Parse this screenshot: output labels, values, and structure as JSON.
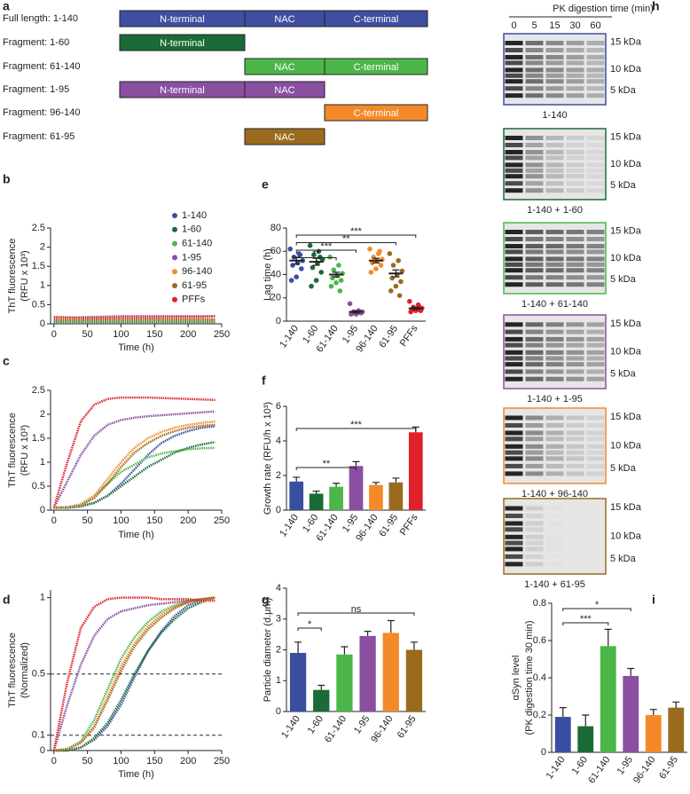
{
  "panel_labels": [
    "a",
    "b",
    "c",
    "d",
    "e",
    "f",
    "g",
    "h",
    "i"
  ],
  "domain_diagram": {
    "rows": [
      {
        "label": "Full length: 1-140",
        "color": "#3f4ea0",
        "segments": [
          "N-terminal",
          "NAC",
          "C-terminal"
        ]
      },
      {
        "label": "Fragment: 1-60",
        "color": "#1a6b35",
        "segments": [
          "N-terminal"
        ]
      },
      {
        "label": "Fragment: 61-140",
        "color": "#4cb648",
        "segments": [
          "NAC",
          "C-terminal"
        ]
      },
      {
        "label": "Fragment: 1-95",
        "color": "#8a4fa0",
        "segments": [
          "N-terminal",
          "NAC"
        ]
      },
      {
        "label": "Fragment: 96-140",
        "color": "#f4892a",
        "segments": [
          "C-terminal"
        ]
      },
      {
        "label": "Fragment: 61-95",
        "color": "#9a6b1f",
        "segments": [
          "NAC"
        ]
      }
    ]
  },
  "gel": {
    "title": "PK digestion time (min)",
    "lanes": [
      0,
      5,
      15,
      30,
      60
    ],
    "markers": [
      "15 kDa",
      "10 kDa",
      "5 kDa"
    ],
    "blots": [
      {
        "caption": "1-140",
        "color": "#3f4ea0"
      },
      {
        "caption": "1-140 + 1-60",
        "color": "#1a6b35"
      },
      {
        "caption": "1-140 + 61-140",
        "color": "#4cb648"
      },
      {
        "caption": "1-140 + 1-95",
        "color": "#8a4fa0"
      },
      {
        "caption": "1-140 + 96-140",
        "color": "#f4892a"
      },
      {
        "caption": "1-140 + 61-95",
        "color": "#9a6b1f"
      }
    ]
  },
  "chart_data": [
    {
      "type": "line",
      "ylabel": [
        "ThT fluorescence",
        "(RFU x 10³)"
      ],
      "xlabel": "Time (h)",
      "xlim": [
        -5,
        250
      ],
      "ylim": [
        0,
        2.5
      ],
      "xticks": [
        0,
        50,
        100,
        150,
        200,
        250
      ],
      "yticks": [
        0,
        0.5,
        1,
        1.5,
        2,
        2.5
      ],
      "legend": "upper right",
      "x": [
        0,
        20,
        40,
        60,
        80,
        100,
        120,
        140,
        160,
        180,
        200,
        220,
        240
      ],
      "series": [
        {
          "name": "1-140",
          "color": "#3a4ea0",
          "values": [
            0.1,
            0.1,
            0.1,
            0.11,
            0.12,
            0.12,
            0.12,
            0.12,
            0.12,
            0.12,
            0.12,
            0.12,
            0.12
          ]
        },
        {
          "name": "1-60",
          "color": "#1a6b35",
          "values": [
            0.05,
            0.05,
            0.05,
            0.05,
            0.05,
            0.05,
            0.05,
            0.05,
            0.05,
            0.05,
            0.05,
            0.05,
            0.05
          ]
        },
        {
          "name": "61-140",
          "color": "#4cb648",
          "values": [
            0.08,
            0.08,
            0.08,
            0.08,
            0.08,
            0.08,
            0.08,
            0.08,
            0.08,
            0.08,
            0.08,
            0.08,
            0.08
          ]
        },
        {
          "name": "1-95",
          "color": "#8a4fa0",
          "values": [
            0.15,
            0.16,
            0.17,
            0.18,
            0.19,
            0.2,
            0.2,
            0.2,
            0.2,
            0.2,
            0.2,
            0.2,
            0.2
          ]
        },
        {
          "name": "96-140",
          "color": "#f4892a",
          "values": [
            0.12,
            0.12,
            0.12,
            0.12,
            0.12,
            0.12,
            0.12,
            0.12,
            0.12,
            0.12,
            0.12,
            0.12,
            0.12
          ]
        },
        {
          "name": "61-95",
          "color": "#9a6b1f",
          "values": [
            0.1,
            0.1,
            0.1,
            0.1,
            0.1,
            0.1,
            0.1,
            0.1,
            0.1,
            0.1,
            0.1,
            0.1,
            0.1
          ]
        },
        {
          "name": "PFFs",
          "color": "#e0202a",
          "values": [
            0.18,
            0.17,
            0.16,
            0.16,
            0.16,
            0.17,
            0.17,
            0.17,
            0.17,
            0.18,
            0.18,
            0.18,
            0.2
          ]
        }
      ]
    },
    {
      "type": "line",
      "ylabel": [
        "ThT fluorescence",
        "(RFU x 10³)"
      ],
      "xlabel": "Time (h)",
      "xlim": [
        -5,
        250
      ],
      "ylim": [
        0,
        2.5
      ],
      "xticks": [
        0,
        50,
        100,
        150,
        200,
        250
      ],
      "yticks": [
        0,
        0.5,
        1,
        1.5,
        2,
        2.5
      ],
      "x": [
        0,
        20,
        40,
        60,
        80,
        100,
        120,
        140,
        160,
        180,
        200,
        220,
        240
      ],
      "series": [
        {
          "name": "1-140",
          "color": "#3a4ea0",
          "values": [
            0.05,
            0.05,
            0.08,
            0.15,
            0.3,
            0.55,
            0.85,
            1.15,
            1.4,
            1.55,
            1.65,
            1.72,
            1.75
          ]
        },
        {
          "name": "1-60",
          "color": "#1a6b35",
          "values": [
            0.05,
            0.05,
            0.08,
            0.15,
            0.3,
            0.5,
            0.7,
            0.9,
            1.05,
            1.2,
            1.3,
            1.37,
            1.42
          ]
        },
        {
          "name": "61-140",
          "color": "#4cb648",
          "values": [
            0.05,
            0.06,
            0.12,
            0.3,
            0.55,
            0.8,
            0.95,
            1.1,
            1.18,
            1.23,
            1.27,
            1.29,
            1.3
          ]
        },
        {
          "name": "1-95",
          "color": "#8a4fa0",
          "values": [
            0.05,
            0.6,
            1.15,
            1.55,
            1.78,
            1.88,
            1.93,
            1.96,
            1.98,
            2.0,
            2.02,
            2.04,
            2.06
          ]
        },
        {
          "name": "96-140",
          "color": "#f4892a",
          "values": [
            0.05,
            0.06,
            0.12,
            0.3,
            0.65,
            1.0,
            1.3,
            1.5,
            1.63,
            1.72,
            1.78,
            1.82,
            1.85
          ]
        },
        {
          "name": "61-95",
          "color": "#9a6b1f",
          "values": [
            0.05,
            0.06,
            0.1,
            0.25,
            0.55,
            0.9,
            1.2,
            1.4,
            1.55,
            1.65,
            1.72,
            1.76,
            1.78
          ]
        },
        {
          "name": "PFFs",
          "color": "#e0202a",
          "values": [
            0.05,
            1.0,
            1.85,
            2.2,
            2.32,
            2.35,
            2.35,
            2.35,
            2.34,
            2.33,
            2.32,
            2.31,
            2.3
          ]
        }
      ]
    },
    {
      "type": "line",
      "ylabel": [
        "ThT fluorescence",
        "(Normalized)"
      ],
      "xlabel": "Time (h)",
      "xlim": [
        -5,
        250
      ],
      "ylim": [
        0,
        1.05
      ],
      "xticks": [
        0,
        50,
        100,
        150,
        200,
        250
      ],
      "yticks": [
        0,
        0.1,
        0.5,
        1
      ],
      "reference_lines": [
        0.5,
        0.1
      ],
      "x": [
        0,
        20,
        40,
        60,
        80,
        100,
        120,
        140,
        160,
        180,
        200,
        220,
        240
      ],
      "series": [
        {
          "name": "1-140",
          "color": "#3a4ea0",
          "values": [
            0,
            0,
            0.02,
            0.07,
            0.16,
            0.3,
            0.48,
            0.65,
            0.78,
            0.88,
            0.95,
            0.98,
            1
          ]
        },
        {
          "name": "1-60",
          "color": "#1a6b35",
          "values": [
            0,
            0,
            0.02,
            0.08,
            0.18,
            0.33,
            0.5,
            0.65,
            0.77,
            0.86,
            0.93,
            0.97,
            1
          ]
        },
        {
          "name": "61-140",
          "color": "#4cb648",
          "values": [
            0,
            0.01,
            0.06,
            0.2,
            0.4,
            0.6,
            0.74,
            0.84,
            0.91,
            0.95,
            0.98,
            0.99,
            1
          ]
        },
        {
          "name": "1-95",
          "color": "#8a4fa0",
          "values": [
            0,
            0.3,
            0.56,
            0.75,
            0.86,
            0.91,
            0.93,
            0.95,
            0.96,
            0.97,
            0.98,
            0.99,
            1
          ]
        },
        {
          "name": "96-140",
          "color": "#f4892a",
          "values": [
            0,
            0.01,
            0.05,
            0.16,
            0.35,
            0.55,
            0.7,
            0.81,
            0.89,
            0.94,
            0.97,
            0.99,
            1
          ]
        },
        {
          "name": "61-95",
          "color": "#9a6b1f",
          "values": [
            0,
            0.01,
            0.05,
            0.15,
            0.33,
            0.52,
            0.68,
            0.79,
            0.87,
            0.93,
            0.97,
            0.99,
            1
          ]
        },
        {
          "name": "PFFs",
          "color": "#e0202a",
          "values": [
            0,
            0.45,
            0.8,
            0.94,
            0.99,
            1,
            1,
            1,
            0.99,
            0.99,
            0.99,
            0.98,
            0.98
          ]
        }
      ]
    },
    {
      "type": "strip",
      "ylabel": [
        "Lag time (h)"
      ],
      "ylim": [
        0,
        80
      ],
      "yticks": [
        0,
        20,
        40,
        60,
        80
      ],
      "categories": [
        "1-140",
        "1-60",
        "61-140",
        "1-95",
        "96-140",
        "61-95",
        "PFFs"
      ],
      "colors": [
        "#3a4ea0",
        "#1a6b35",
        "#4cb648",
        "#8a4fa0",
        "#f4892a",
        "#9a6b1f",
        "#e0202a"
      ],
      "points": [
        [
          62,
          58,
          55,
          52,
          50,
          48,
          45,
          38,
          35,
          57
        ],
        [
          65,
          60,
          57,
          53,
          50,
          46,
          42,
          35,
          30,
          55
        ],
        [
          55,
          48,
          44,
          41,
          39,
          37,
          35,
          33,
          30,
          26
        ],
        [
          15,
          9,
          8,
          8,
          7,
          7,
          7,
          6,
          6,
          8
        ],
        [
          62,
          58,
          55,
          53,
          52,
          50,
          48,
          45,
          42,
          60
        ],
        [
          58,
          52,
          48,
          43,
          40,
          37,
          34,
          30,
          26,
          22
        ],
        [
          17,
          14,
          12,
          11,
          10,
          10,
          9,
          9,
          8,
          12
        ]
      ],
      "values": [
        52,
        51,
        40,
        8,
        52,
        41,
        11
      ],
      "errors": [
        3,
        3,
        2,
        1,
        2,
        3,
        1
      ],
      "annotations": [
        {
          "label": "**",
          "from": "1-140",
          "to": "61-140"
        },
        {
          "label": "***",
          "from": "1-140",
          "to": "1-95"
        },
        {
          "label": "**",
          "from": "1-140",
          "to": "61-95"
        },
        {
          "label": "***",
          "from": "1-140",
          "to": "PFFs"
        }
      ]
    },
    {
      "type": "bar",
      "ylabel": [
        "Growth rate (RFU/h x 10³)"
      ],
      "ylim": [
        0,
        6
      ],
      "yticks": [
        0,
        2,
        4,
        6
      ],
      "categories": [
        "1-140",
        "1-60",
        "61-140",
        "1-95",
        "96-140",
        "61-95",
        "PFFs"
      ],
      "colors": [
        "#3a4ea0",
        "#1a6b35",
        "#4cb648",
        "#8a4fa0",
        "#f4892a",
        "#9a6b1f",
        "#e0202a"
      ],
      "values": [
        1.65,
        0.95,
        1.35,
        2.55,
        1.45,
        1.6,
        4.5
      ],
      "errors": [
        0.25,
        0.15,
        0.2,
        0.25,
        0.15,
        0.25,
        0.3
      ],
      "annotations": [
        {
          "label": "**",
          "from": "1-140",
          "to": "1-95"
        },
        {
          "label": "***",
          "from": "1-140",
          "to": "PFFs"
        }
      ]
    },
    {
      "type": "bar",
      "ylabel": [
        "Particle diameter (d.μm)"
      ],
      "ylim": [
        0,
        4
      ],
      "yticks": [
        0,
        1,
        2,
        3,
        4
      ],
      "categories": [
        "1-140",
        "1-60",
        "61-140",
        "1-95",
        "96-140",
        "61-95"
      ],
      "colors": [
        "#3a4ea0",
        "#1a6b35",
        "#4cb648",
        "#8a4fa0",
        "#f4892a",
        "#9a6b1f"
      ],
      "values": [
        1.9,
        0.7,
        1.85,
        2.45,
        2.55,
        2.0
      ],
      "errors": [
        0.35,
        0.15,
        0.25,
        0.15,
        0.4,
        0.25
      ],
      "annotations": [
        {
          "label": "*",
          "from": "1-140",
          "to": "1-60"
        },
        {
          "label": "ns",
          "from": "1-140",
          "to": "61-95"
        }
      ]
    },
    {
      "type": "bar",
      "ylabel": [
        "αSyn level",
        "(PK digestion time 30 min)"
      ],
      "ylim": [
        0,
        0.8
      ],
      "yticks": [
        0,
        0.2,
        0.4,
        0.6,
        0.8
      ],
      "categories": [
        "1-140",
        "1-60",
        "61-140",
        "1-95",
        "96-140",
        "61-95"
      ],
      "colors": [
        "#3a4ea0",
        "#1a6b35",
        "#4cb648",
        "#8a4fa0",
        "#f4892a",
        "#9a6b1f"
      ],
      "values": [
        0.19,
        0.14,
        0.57,
        0.41,
        0.2,
        0.24
      ],
      "errors": [
        0.05,
        0.06,
        0.09,
        0.04,
        0.03,
        0.03
      ],
      "annotations": [
        {
          "label": "***",
          "from": "1-140",
          "to": "61-140"
        },
        {
          "label": "*",
          "from": "1-140",
          "to": "1-95"
        }
      ]
    }
  ]
}
